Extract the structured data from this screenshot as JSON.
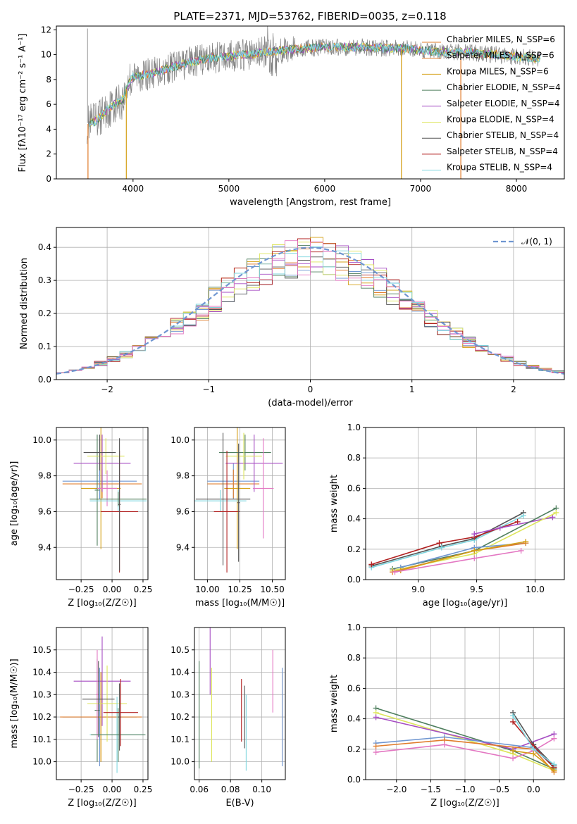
{
  "colors": {
    "c1": "#6f96d1",
    "c2": "#e07c2b",
    "c3": "#d4a017",
    "c4": "#4f7f5e",
    "c5": "#a64dc3",
    "c6": "#dde55b",
    "c7": "#555555",
    "c8": "#b22222",
    "c9": "#7fd6df",
    "pink": "#e377c2",
    "grid": "#b0b0b0",
    "spec": "#808080"
  },
  "chart_data": [
    {
      "id": "spectrum",
      "type": "line",
      "title": "PLATE=2371, MJD=53762, FIBERID=0035, z=0.118",
      "xlabel": "wavelength [Angstrom, rest frame]",
      "ylabel": "Flux [f$_\\lambda$10$^{-17}$ erg cm$^{-2}$ s$^{-1}$ A$^{-1}$]",
      "xlim": [
        3200,
        8500
      ],
      "ylim": [
        0,
        12.3
      ],
      "xticks": [
        "4000",
        "5000",
        "6000",
        "7000",
        "8000"
      ],
      "yticks": [
        "0",
        "2",
        "4",
        "6",
        "8",
        "10",
        "12"
      ],
      "grid": false,
      "legend_position": "right",
      "legend": [
        "Chabrier MILES, N_SSP=6",
        "Salpeter MILES, N_SSP=6",
        "Kroupa MILES, N_SSP=6",
        "Chabrier ELODIE, N_SSP=4",
        "Salpeter ELODIE, N_SSP=4",
        "Kroupa ELODIE, N_SSP=4",
        "Chabrier STELIB, N_SSP=4",
        "Salpeter STELIB, N_SSP=4",
        "Kroupa STELIB, N_SSP=4"
      ],
      "continuum_x": [
        3520,
        3600,
        3700,
        3800,
        3900,
        3950,
        4000,
        4200,
        4400,
        4600,
        4800,
        5000,
        5200,
        5400,
        5600,
        5800,
        6000,
        6200,
        6400,
        6600,
        6800,
        7000,
        7200,
        7400,
        7600,
        7800,
        8000,
        8250
      ],
      "continuum_y": [
        4.4,
        4.6,
        5.3,
        6.0,
        6.4,
        7.8,
        8.2,
        8.5,
        9.0,
        9.4,
        9.7,
        9.9,
        10.0,
        10.2,
        10.4,
        10.5,
        10.6,
        10.6,
        10.6,
        10.5,
        10.5,
        10.4,
        10.2,
        10.2,
        10.1,
        10.0,
        9.8,
        9.7
      ]
    },
    {
      "id": "residuals",
      "type": "histogram",
      "xlabel": "(data-model)/error",
      "ylabel": "Normed distribution",
      "xlim": [
        -2.5,
        2.5
      ],
      "ylim": [
        0,
        0.46
      ],
      "xticks": [
        "−2",
        "−1",
        "0",
        "1",
        "2"
      ],
      "yticks": [
        "0.0",
        "0.1",
        "0.2",
        "0.3",
        "0.4"
      ],
      "grid": true,
      "legend_position": "top-right",
      "legend": [
        "𝒩(0, 1)"
      ],
      "bins": 40
    },
    {
      "id": "age-vs-Z",
      "type": "errorbar",
      "xlabel": "Z [log₁₀(Z/Z☉)]",
      "ylabel": "age [log₁₀(age/yr)]",
      "xlim": [
        -0.45,
        0.29
      ],
      "ylim": [
        9.22,
        10.07
      ],
      "xticks": [
        "−0.25",
        "0.00",
        "0.25"
      ],
      "yticks": [
        "9.4",
        "9.6",
        "9.8",
        "10.0"
      ],
      "grid": true,
      "points": [
        {
          "series": "c1",
          "x": -0.1,
          "xerr": 0.3,
          "y": 9.77,
          "yerr": 0.1
        },
        {
          "series": "c2",
          "x": -0.08,
          "xerr": 0.32,
          "y": 9.755,
          "yerr": 0.08
        },
        {
          "series": "c3",
          "x": -0.09,
          "xerr": 0.16,
          "y": 9.73,
          "yerr": 0.34
        },
        {
          "series": "c4",
          "x": -0.12,
          "xerr": 0.02,
          "y": 9.72,
          "yerr": 0.31
        },
        {
          "series": "c5",
          "x": -0.08,
          "xerr": 0.23,
          "y": 9.87,
          "yerr": 0.16
        },
        {
          "series": "pink",
          "x": -0.04,
          "xerr": 0.08,
          "y": 9.73,
          "yerr": 0.1
        },
        {
          "series": "c6",
          "x": -0.05,
          "xerr": 0.15,
          "y": 9.91,
          "yerr": 0.1
        },
        {
          "series": "c7",
          "x": -0.1,
          "xerr": 0.13,
          "y": 9.93,
          "yerr": 0.1
        },
        {
          "series": "c9",
          "x": 0.05,
          "xerr": 0.23,
          "y": 9.66,
          "yerr": 0.06
        },
        {
          "series": "c4b",
          "x": 0.05,
          "xerr": 0.23,
          "y": 9.67,
          "yerr": 0.04
        },
        {
          "series": "c8",
          "x": 0.06,
          "xerr": 0.15,
          "y": 9.6,
          "yerr": 0.34
        },
        {
          "series": "c7b",
          "x": 0.06,
          "xerr": 0.01,
          "y": 9.64,
          "yerr": 0.37
        }
      ]
    },
    {
      "id": "age-vs-mass",
      "type": "errorbar",
      "xlabel": "mass [log₁₀(M/M☉)]",
      "xlim": [
        9.9,
        10.6
      ],
      "ylim": [
        9.22,
        10.07
      ],
      "xticks": [
        "10.00",
        "10.25",
        "10.50"
      ],
      "yticks": [
        "9.4",
        "9.6",
        "9.8",
        "10.0"
      ],
      "grid": true,
      "points": [
        {
          "series": "c1",
          "x": 10.2,
          "xerr": 0.2,
          "y": 9.77,
          "yerr": 0.1
        },
        {
          "series": "c2",
          "x": 10.2,
          "xerr": 0.2,
          "y": 9.755,
          "yerr": 0.08
        },
        {
          "series": "c3",
          "x": 10.23,
          "xerr": 0.1,
          "y": 9.73,
          "yerr": 0.34
        },
        {
          "series": "c4",
          "x": 10.29,
          "xerr": 0.2,
          "y": 9.93,
          "yerr": 0.1
        },
        {
          "series": "c5",
          "x": 10.36,
          "xerr": 0.22,
          "y": 9.87,
          "yerr": 0.16
        },
        {
          "series": "pink",
          "x": 10.43,
          "xerr": 0.08,
          "y": 9.73,
          "yerr": 0.28
        },
        {
          "series": "c6",
          "x": 10.28,
          "xerr": 0.14,
          "y": 9.91,
          "yerr": 0.13
        },
        {
          "series": "c7",
          "x": 10.12,
          "xerr": 0.21,
          "y": 9.67,
          "yerr": 0.37
        },
        {
          "series": "c9",
          "x": 10.1,
          "xerr": 0.2,
          "y": 9.66,
          "yerr": 0.06
        },
        {
          "series": "c8",
          "x": 10.15,
          "xerr": 0.1,
          "y": 9.6,
          "yerr": 0.34
        },
        {
          "series": "c7b",
          "x": 10.24,
          "xerr": 0.01,
          "y": 9.65,
          "yerr": 0.33
        }
      ]
    },
    {
      "id": "weight-vs-age",
      "type": "line",
      "xlabel": "age [log₁₀(age/yr)]",
      "ylabel": "mass weight",
      "xlim": [
        8.55,
        10.25
      ],
      "ylim": [
        0,
        1
      ],
      "xticks": [
        "9.0",
        "9.5",
        "10.0"
      ],
      "yticks": [
        "0.0",
        "0.2",
        "0.4",
        "0.6",
        "0.8",
        "1.0"
      ],
      "grid": true,
      "series": [
        {
          "color": "c7",
          "x": [
            8.6,
            9.2,
            9.48,
            9.9
          ],
          "y": [
            0.09,
            0.22,
            0.27,
            0.44
          ]
        },
        {
          "color": "c9",
          "x": [
            8.6,
            9.2,
            9.48,
            9.9
          ],
          "y": [
            0.08,
            0.21,
            0.26,
            0.42
          ]
        },
        {
          "color": "c8",
          "x": [
            8.6,
            9.18,
            9.48,
            9.85
          ],
          "y": [
            0.1,
            0.24,
            0.28,
            0.38
          ]
        },
        {
          "color": "c5",
          "x": [
            9.48,
            9.7,
            10.15
          ],
          "y": [
            0.3,
            0.34,
            0.41
          ]
        },
        {
          "color": "c4",
          "x": [
            8.78,
            9.48,
            10.18
          ],
          "y": [
            0.07,
            0.19,
            0.47
          ]
        },
        {
          "color": "c6",
          "x": [
            8.78,
            9.48,
            10.18
          ],
          "y": [
            0.06,
            0.17,
            0.44
          ]
        },
        {
          "color": "c1",
          "x": [
            8.85,
            9.48,
            9.92
          ],
          "y": [
            0.08,
            0.21,
            0.24
          ]
        },
        {
          "color": "c2",
          "x": [
            8.78,
            9.48,
            9.92
          ],
          "y": [
            0.05,
            0.19,
            0.24
          ]
        },
        {
          "color": "c3",
          "x": [
            8.85,
            9.48,
            9.92
          ],
          "y": [
            0.06,
            0.19,
            0.25
          ]
        },
        {
          "color": "pink",
          "x": [
            8.8,
            9.48,
            9.88
          ],
          "y": [
            0.05,
            0.14,
            0.19
          ]
        }
      ]
    },
    {
      "id": "mass-vs-Z",
      "type": "errorbar",
      "xlabel": "Z [log₁₀(Z/Z☉)]",
      "ylabel": "mass [log₁₀(M/M☉)]",
      "xlim": [
        -0.45,
        0.29
      ],
      "ylim": [
        9.92,
        10.6
      ],
      "xticks": [
        "−0.25",
        "0.00",
        "0.25"
      ],
      "yticks": [
        "10.0",
        "10.1",
        "10.2",
        "10.3",
        "10.4",
        "10.5"
      ],
      "grid": true,
      "points": [
        {
          "series": "c1",
          "x": -0.1,
          "xerr": 0.3,
          "y": 10.2,
          "yerr": 0.22
        },
        {
          "series": "c2",
          "x": -0.09,
          "xerr": 0.33,
          "y": 10.2,
          "yerr": 0.2
        },
        {
          "series": "c3",
          "x": -0.09,
          "xerr": 0.02,
          "y": 10.2,
          "yerr": 0.2
        },
        {
          "series": "c4",
          "x": -0.12,
          "xerr": 0.02,
          "y": 10.23,
          "yerr": 0.23
        },
        {
          "series": "c5",
          "x": -0.08,
          "xerr": 0.23,
          "y": 10.36,
          "yerr": 0.2
        },
        {
          "series": "pink",
          "x": -0.12,
          "xerr": 0.01,
          "y": 10.3,
          "yerr": 0.2
        },
        {
          "series": "c6",
          "x": -0.04,
          "xerr": 0.16,
          "y": 10.26,
          "yerr": 0.17
        },
        {
          "series": "c7",
          "x": -0.11,
          "xerr": 0.13,
          "y": 10.28,
          "yerr": 0.17
        },
        {
          "series": "c9",
          "x": 0.04,
          "xerr": 0.22,
          "y": 10.12,
          "yerr": 0.17
        },
        {
          "series": "c4b",
          "x": 0.05,
          "xerr": 0.22,
          "y": 10.12,
          "yerr": 0.12
        },
        {
          "series": "c8",
          "x": 0.07,
          "xerr": 0.14,
          "y": 10.22,
          "yerr": 0.15
        },
        {
          "series": "c7b",
          "x": 0.06,
          "xerr": 0.01,
          "y": 10.2,
          "yerr": 0.15
        }
      ]
    },
    {
      "id": "mass-vs-ebv",
      "type": "errorbar",
      "xlabel": "E(B-V)",
      "xlim": [
        0.057,
        0.115
      ],
      "ylim": [
        9.92,
        10.6
      ],
      "xticks": [
        "0.06",
        "0.08",
        "0.10"
      ],
      "yticks": [
        "10.0",
        "10.1",
        "10.2",
        "10.3",
        "10.4",
        "10.5"
      ],
      "grid": true,
      "points": [
        {
          "series": "c4",
          "x": 0.06,
          "yerr": 0.24,
          "y": 10.21
        },
        {
          "series": "c5",
          "x": 0.067,
          "yerr": 0.15,
          "y": 10.45
        },
        {
          "series": "c6",
          "x": 0.068,
          "yerr": 0.21,
          "y": 10.21
        },
        {
          "series": "c8",
          "x": 0.087,
          "yerr": 0.14,
          "y": 10.23
        },
        {
          "series": "c7",
          "x": 0.089,
          "yerr": 0.14,
          "y": 10.2
        },
        {
          "series": "c9",
          "x": 0.09,
          "yerr": 0.17,
          "y": 10.13
        },
        {
          "series": "pink",
          "x": 0.107,
          "yerr": 0.14,
          "y": 10.36
        },
        {
          "series": "c2",
          "x": 0.113,
          "yerr": 0.2,
          "y": 10.2
        },
        {
          "series": "c1",
          "x": 0.113,
          "yerr": 0.22,
          "y": 10.2
        }
      ]
    },
    {
      "id": "weight-vs-Z",
      "type": "line",
      "xlabel": "Z [log₁₀(Z/Z☉)]",
      "ylabel": "mass weight",
      "xlim": [
        -2.45,
        0.45
      ],
      "ylim": [
        0,
        1
      ],
      "xticks": [
        "−2.0",
        "−1.5",
        "−1.0",
        "−0.5",
        "0.0"
      ],
      "yticks": [
        "0.0",
        "0.2",
        "0.4",
        "0.6",
        "0.8",
        "1.0"
      ],
      "grid": true,
      "series": [
        {
          "color": "c4",
          "x": [
            -2.3,
            -0.3,
            0.3
          ],
          "y": [
            0.47,
            0.19,
            0.07
          ]
        },
        {
          "color": "c6",
          "x": [
            -2.3,
            -0.3,
            0.3
          ],
          "y": [
            0.44,
            0.17,
            0.06
          ]
        },
        {
          "color": "c5",
          "x": [
            -2.3,
            -0.3,
            0.3
          ],
          "y": [
            0.41,
            0.2,
            0.3
          ]
        },
        {
          "color": "c1",
          "x": [
            -2.3,
            -1.3,
            0.0,
            0.3
          ],
          "y": [
            0.24,
            0.28,
            0.21,
            0.08
          ]
        },
        {
          "color": "c2",
          "x": [
            -2.3,
            -1.3,
            0.0,
            0.3
          ],
          "y": [
            0.22,
            0.26,
            0.2,
            0.05
          ]
        },
        {
          "color": "pink",
          "x": [
            -2.3,
            -1.3,
            -0.3,
            0.0,
            0.3
          ],
          "y": [
            0.18,
            0.23,
            0.14,
            0.19,
            0.27
          ]
        },
        {
          "color": "c7",
          "x": [
            -0.3,
            0.0,
            0.3
          ],
          "y": [
            0.44,
            0.23,
            0.09
          ]
        },
        {
          "color": "c8",
          "x": [
            -0.3,
            0.0,
            0.3
          ],
          "y": [
            0.38,
            0.22,
            0.08
          ]
        },
        {
          "color": "c9",
          "x": [
            -0.3,
            0.0,
            0.3
          ],
          "y": [
            0.42,
            0.2,
            0.1
          ]
        },
        {
          "color": "c3",
          "x": [
            -0.3,
            0.0,
            0.3
          ],
          "y": [
            0.19,
            0.17,
            0.06
          ]
        }
      ]
    }
  ]
}
